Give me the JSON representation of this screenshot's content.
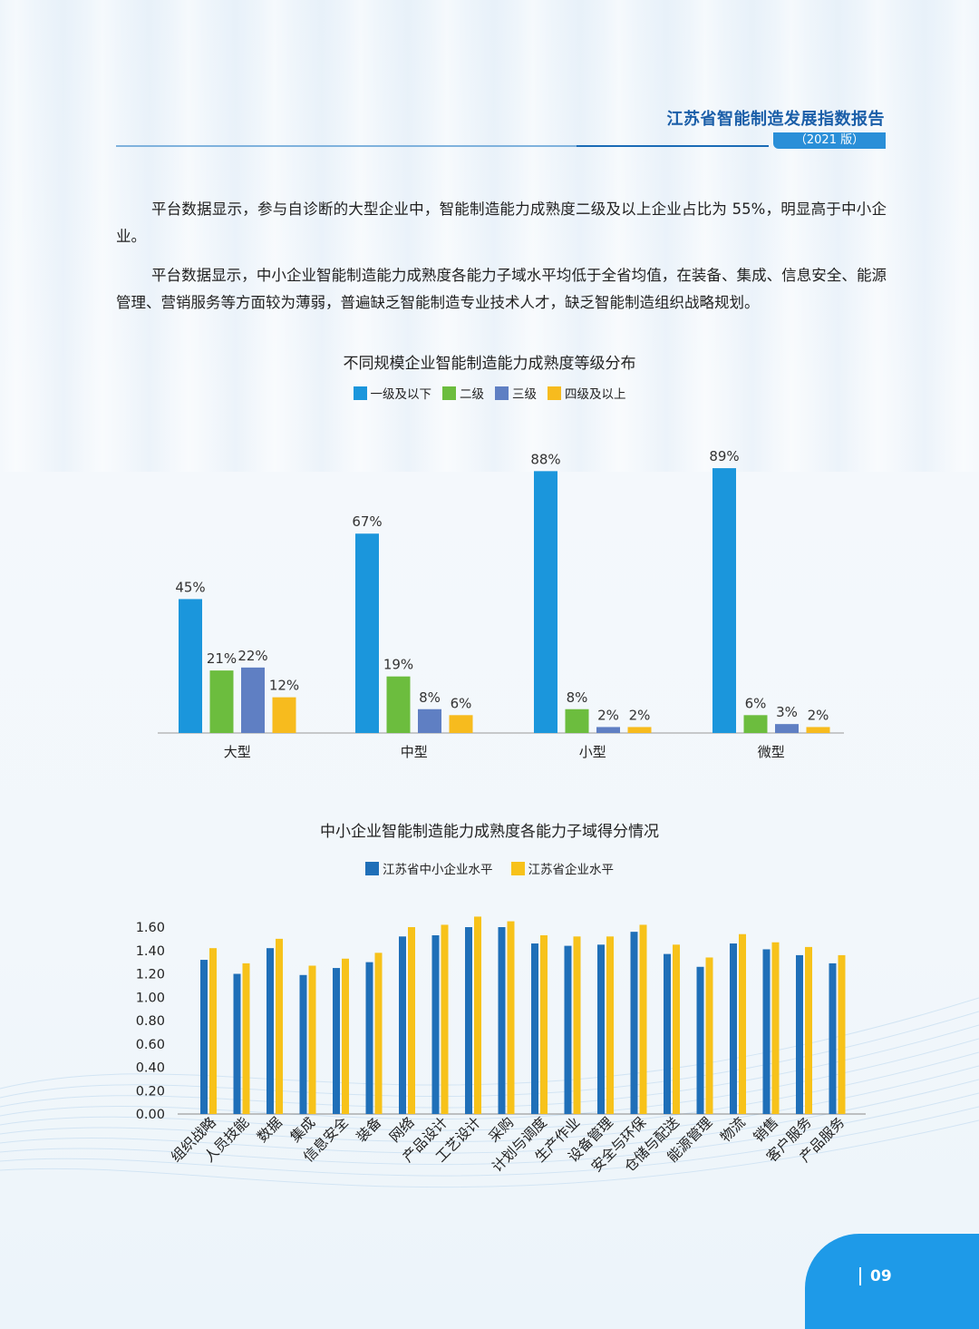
{
  "header": {
    "title": "江苏省智能制造发展指数报告",
    "edition": "（2021 版）"
  },
  "paragraphs": [
    "平台数据显示，参与自诊断的大型企业中，智能制造能力成熟度二级及以上企业占比为 55%，明显高于中小企业。",
    "平台数据显示，中小企业智能制造能力成熟度各能力子域水平均低于全省均值，在装备、集成、信息安全、能源管理、营销服务等方面较为薄弱，普遍缺乏智能制造专业技术人才，缺乏智能制造组织战略规划。"
  ],
  "page_number": "09",
  "colors": {
    "blue": "#1b96dc",
    "green": "#6cbd3e",
    "purple": "#5f7fc3",
    "yellow": "#f7bb1e",
    "navy": "#1f6fb8",
    "gold": "#f7c21a"
  },
  "chart_data": [
    {
      "type": "bar",
      "title": "不同规模企业智能制造能力成熟度等级分布",
      "categories": [
        "大型",
        "中型",
        "小型",
        "微型"
      ],
      "series": [
        {
          "name": "一级及以下",
          "values": [
            45,
            67,
            88,
            89
          ],
          "labels": [
            "45%",
            "67%",
            "88%",
            "89%"
          ]
        },
        {
          "name": "二级",
          "values": [
            21,
            19,
            8,
            6
          ],
          "labels": [
            "21%",
            "19%",
            "8%",
            "6%"
          ]
        },
        {
          "name": "三级",
          "values": [
            22,
            8,
            2,
            3
          ],
          "labels": [
            "22%",
            "8%",
            "2%",
            "3%"
          ]
        },
        {
          "name": "四级及以上",
          "values": [
            12,
            6,
            2,
            2
          ],
          "labels": [
            "12%",
            "6%",
            "2%",
            "2%"
          ]
        }
      ],
      "ylim": [
        0,
        100
      ],
      "legend": "top"
    },
    {
      "type": "bar",
      "title": "中小企业智能制造能力成熟度各能力子域得分情况",
      "categories": [
        "组织战略",
        "人员技能",
        "数据",
        "集成",
        "信息安全",
        "装备",
        "网络",
        "产品设计",
        "工艺设计",
        "采购",
        "计划与调度",
        "生产作业",
        "设备管理",
        "安全与环保",
        "仓储与配送",
        "能源管理",
        "物流",
        "销售",
        "客户服务",
        "产品服务"
      ],
      "series": [
        {
          "name": "江苏省中小企业水平",
          "values": [
            1.32,
            1.2,
            1.42,
            1.19,
            1.25,
            1.3,
            1.52,
            1.53,
            1.6,
            1.6,
            1.46,
            1.44,
            1.45,
            1.56,
            1.37,
            1.26,
            1.46,
            1.41,
            1.36,
            1.29
          ]
        },
        {
          "name": "江苏省企业水平",
          "values": [
            1.42,
            1.29,
            1.5,
            1.27,
            1.33,
            1.38,
            1.6,
            1.62,
            1.69,
            1.65,
            1.53,
            1.52,
            1.52,
            1.62,
            1.45,
            1.34,
            1.54,
            1.47,
            1.43,
            1.36
          ]
        }
      ],
      "yticks": [
        "0.00",
        "0.20",
        "0.40",
        "0.60",
        "0.80",
        "1.00",
        "1.20",
        "1.40",
        "1.60"
      ],
      "ylim": [
        0,
        1.6
      ],
      "legend": "top"
    }
  ]
}
